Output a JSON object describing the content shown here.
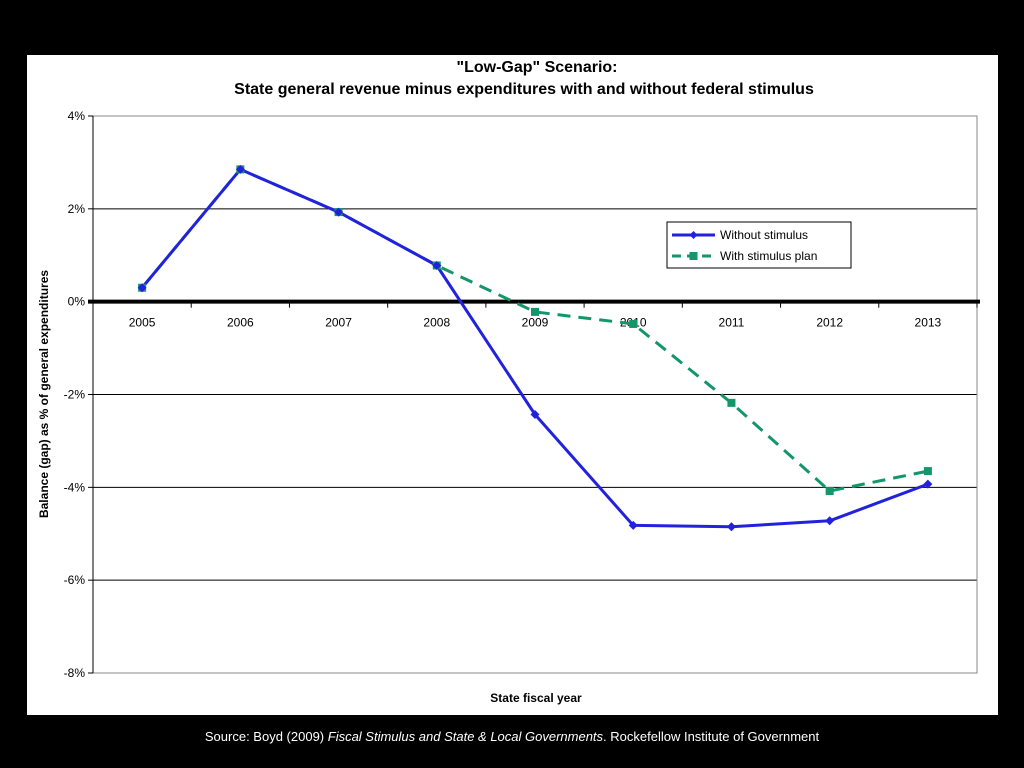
{
  "chart_data": {
    "type": "line",
    "title": "\"Low-Gap\" Scenario:",
    "subtitle": "State general revenue minus expenditures with and without federal stimulus",
    "xlabel": "State fiscal year",
    "ylabel": "Balance (gap) as % of general expenditures",
    "categories": [
      "2005",
      "2006",
      "2007",
      "2008",
      "2009",
      "2010",
      "2011",
      "2012",
      "2013"
    ],
    "ylim": [
      -8,
      4
    ],
    "yticks": [
      4,
      2,
      0,
      -2,
      -4,
      -6,
      -8
    ],
    "ytick_labels": [
      "4%",
      "2%",
      "0%",
      "-2%",
      "-4%",
      "-6%",
      "-8%"
    ],
    "grid": "horizontal",
    "legend_position": "right",
    "series": [
      {
        "name": "Without stimulus",
        "color": "#2222dd",
        "marker": "diamond",
        "line": "solid",
        "values": [
          0.3,
          2.85,
          1.93,
          0.78,
          -2.43,
          -4.82,
          -4.85,
          -4.72,
          -3.93
        ]
      },
      {
        "name": "With stimulus plan",
        "color": "#13966a",
        "marker": "square",
        "line": "dashed",
        "values": [
          0.3,
          2.85,
          1.93,
          0.78,
          -0.22,
          -0.48,
          -2.18,
          -4.08,
          -3.65
        ]
      }
    ]
  },
  "source": {
    "prefix": "Source: Boyd (2009) ",
    "italic": "Fiscal Stimulus and State & Local Governments",
    "suffix": ". Rockefellow Institute of Government"
  }
}
